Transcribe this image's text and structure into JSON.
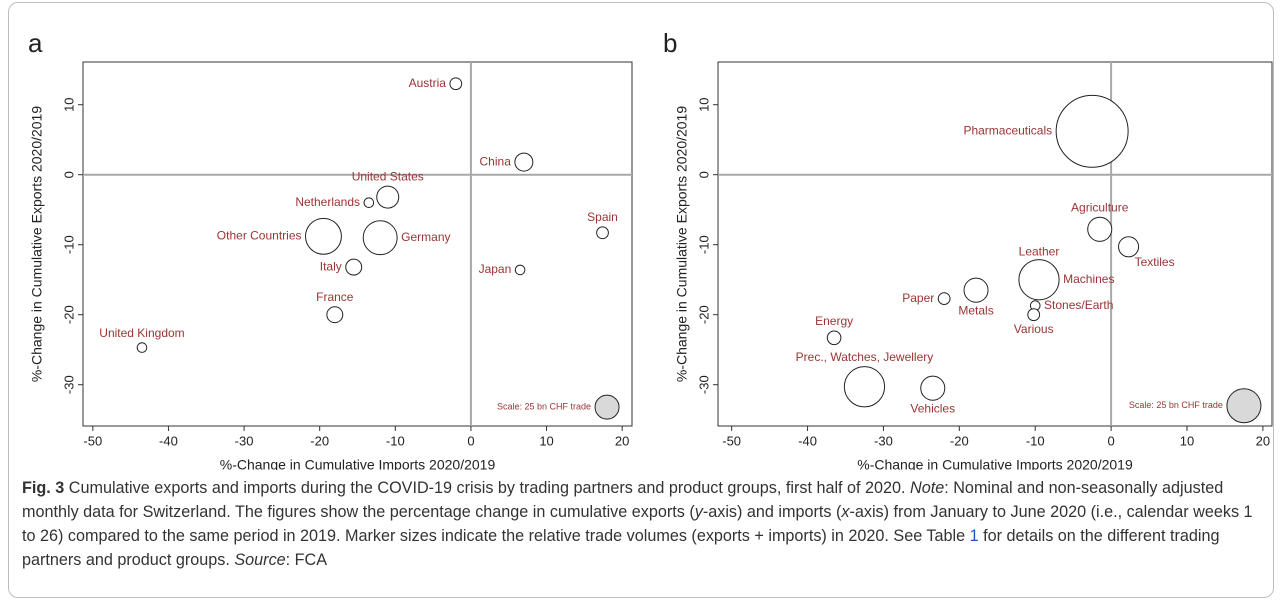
{
  "chart_data": [
    {
      "type": "scatter",
      "panel": "a",
      "xlabel": "%-Change in Cumulative Imports 2020/2019",
      "ylabel": "%-Change in Cumulative Exports 2020/2019",
      "labels": [
        "Austria",
        "China",
        "United States",
        "Netherlands",
        "Spain",
        "Other Countries",
        "Germany",
        "Italy",
        "Japan",
        "France",
        "United Kingdom",
        "Scale: 25 bn CHF trade"
      ],
      "x": [
        -2,
        7,
        -11,
        -13.5,
        17.4,
        -19.5,
        -12,
        -15.5,
        6.5,
        -18,
        -43.5,
        18
      ],
      "values": [
        13,
        1.8,
        -3.2,
        -4,
        -8.3,
        -8.8,
        -9,
        -13.2,
        -13.6,
        -20,
        -24.7,
        -33.2
      ],
      "sizes": [
        6,
        14,
        21,
        4,
        6,
        56,
        50,
        11,
        4,
        11,
        4,
        25
      ],
      "xlim": [
        -51.3,
        21.3
      ],
      "xticks": [
        -50,
        -40,
        -30,
        -20,
        -10,
        0,
        10,
        20
      ],
      "ylim": [
        -35.9,
        16.1
      ],
      "yticks": [
        10,
        0,
        -10,
        -20,
        -30
      ],
      "label_color": "#9a3434",
      "scale_fill": "#d9d9d9"
    },
    {
      "type": "scatter",
      "panel": "b",
      "xlabel": "%-Change in Cumulative Imports 2020/2019",
      "ylabel": "%-Change in Cumulative Exports 2020/2019",
      "labels": [
        "Pharmaceuticals",
        "Agriculture",
        "Textiles",
        "Leather",
        "Machines",
        "Metals",
        "Paper",
        "Stones/Earth",
        "Various",
        "Energy",
        "Prec., Watches, Jewellery",
        "Vehicles",
        "Scale: 25 bn CHF trade"
      ],
      "x": [
        -2.5,
        -1.5,
        2.3,
        -9.5,
        -9.5,
        -17.8,
        -22,
        -10,
        -10.2,
        -36.5,
        -32.5,
        -23.5,
        17.5
      ],
      "values": [
        6.2,
        -7.8,
        -10.3,
        -13.5,
        -15,
        -16.5,
        -17.7,
        -18.7,
        -20,
        -23.3,
        -30.3,
        -30.5,
        -33
      ],
      "sizes": [
        112,
        12.5,
        8.7,
        5.5,
        35,
        12.5,
        3,
        2,
        3,
        4,
        35,
        12.5,
        25
      ],
      "xlim": [
        -51.8,
        21.2
      ],
      "xticks": [
        -50,
        -40,
        -30,
        -20,
        -10,
        0,
        10,
        20
      ],
      "ylim": [
        -35.9,
        16.1
      ],
      "yticks": [
        10,
        0,
        -10,
        -20,
        -30
      ],
      "label_color": "#9a3434",
      "scale_fill": "#d9d9d9"
    }
  ],
  "caption": [
    {
      "text": "Fig. 3",
      "style": "bold"
    },
    {
      "text": " Cumulative exports and imports during the COVID-19 crisis by trading partners and product groups, first half of 2020. "
    },
    {
      "text": "Note",
      "style": "italic"
    },
    {
      "text": ": Nominal and non-seasonally adjusted monthly data for Switzerland. The figures show the percentage change in cumulative exports ("
    },
    {
      "text": "y",
      "style": "italic"
    },
    {
      "text": "-axis) and imports ("
    },
    {
      "text": "x",
      "style": "italic"
    },
    {
      "text": "-axis) from January to June 2020 (i.e., calendar weeks 1 to 26) compared to the same period in 2019. Marker sizes indicate the relative trade volumes (exports + imports) in 2020. See Table "
    },
    {
      "text": "1",
      "style": "link"
    },
    {
      "text": " for details on the different trading partners and product groups. "
    },
    {
      "text": "Source",
      "style": "italic"
    },
    {
      "text": ": FCA"
    }
  ]
}
